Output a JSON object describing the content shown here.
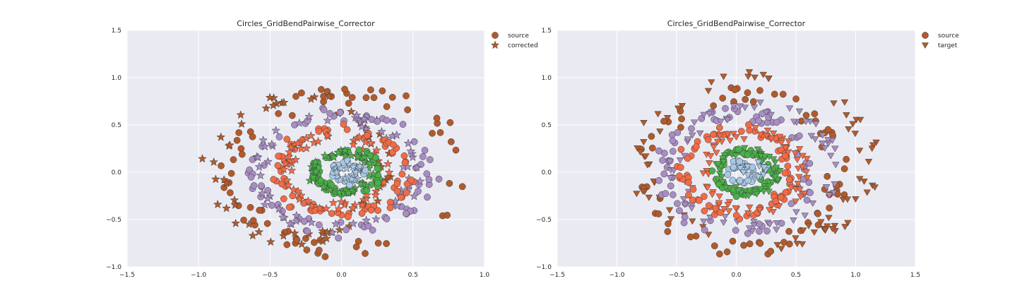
{
  "colors": {
    "axes_bg": "#eaeaf2",
    "grid": "#ffffff",
    "outer_ring": "#b35a2b",
    "ring_purple": "#a88dc4",
    "ring_orange": "#f26b45",
    "ring_green": "#4ab048",
    "ring_blue": "#a6c8e6",
    "edge": "#3a3a3a"
  },
  "chart_data": [
    {
      "type": "scatter",
      "title": "Circles_GridBendPairwise_Corrector",
      "xlabel": "",
      "ylabel": "",
      "xlim": [
        -1.5,
        1.0
      ],
      "ylim": [
        -1.0,
        1.5
      ],
      "xticks": [
        "−1.5",
        "−1.0",
        "−0.5",
        "0.0",
        "0.5",
        "1.0"
      ],
      "yticks": [
        "−1.0",
        "−0.5",
        "0.0",
        "0.5",
        "1.0",
        "1.5"
      ],
      "grid": true,
      "legend": {
        "placement": "outside-top-right",
        "entries": [
          {
            "label": "source",
            "marker": "circle"
          },
          {
            "label": "corrected",
            "marker": "star"
          }
        ]
      },
      "series": [
        {
          "name": "source",
          "marker": "circle",
          "color_by": "ring",
          "rings": [
            {
              "ring": "outer",
              "center": [
                0.05,
                0.0
              ],
              "rx": 0.8,
              "ry": 0.82,
              "n": 70
            },
            {
              "ring": "second",
              "center": [
                0.0,
                0.0
              ],
              "rx": 0.6,
              "ry": 0.62,
              "n": 70
            },
            {
              "ring": "third",
              "center": [
                0.0,
                0.0
              ],
              "rx": 0.45,
              "ry": 0.45,
              "n": 80
            },
            {
              "ring": "fourth",
              "center": [
                0.05,
                0.0
              ],
              "rx": 0.22,
              "ry": 0.22,
              "n": 60
            },
            {
              "ring": "core",
              "center": [
                0.05,
                0.0
              ],
              "rx": 0.1,
              "ry": 0.1,
              "n": 25
            }
          ]
        },
        {
          "name": "corrected",
          "marker": "star",
          "color_by": "ring",
          "rings": [
            {
              "ring": "outer",
              "center": [
                -0.3,
                0.05
              ],
              "rx": 0.6,
              "ry": 0.75,
              "n": 60
            },
            {
              "ring": "second",
              "center": [
                -0.05,
                0.0
              ],
              "rx": 0.55,
              "ry": 0.58,
              "n": 60
            },
            {
              "ring": "third",
              "center": [
                -0.05,
                0.0
              ],
              "rx": 0.35,
              "ry": 0.38,
              "n": 60
            },
            {
              "ring": "fourth",
              "center": [
                0.0,
                0.0
              ],
              "rx": 0.2,
              "ry": 0.2,
              "n": 50
            },
            {
              "ring": "core",
              "center": [
                0.05,
                0.0
              ],
              "rx": 0.07,
              "ry": 0.07,
              "n": 20
            }
          ]
        }
      ]
    },
    {
      "type": "scatter",
      "title": "Circles_GridBendPairwise_Corrector",
      "xlabel": "",
      "ylabel": "",
      "xlim": [
        -1.5,
        1.5
      ],
      "ylim": [
        -1.0,
        1.5
      ],
      "xticks": [
        "−1.5",
        "−1.0",
        "−0.5",
        "0.0",
        "0.5",
        "1.0",
        "1.5"
      ],
      "yticks": [
        "−1.0",
        "−0.5",
        "0.0",
        "0.5",
        "1.0",
        "1.5"
      ],
      "grid": true,
      "legend": {
        "placement": "outside-top-right",
        "entries": [
          {
            "label": "source",
            "marker": "circle"
          },
          {
            "label": "target",
            "marker": "triangle-down"
          }
        ]
      },
      "series": [
        {
          "name": "source",
          "marker": "circle",
          "color_by": "ring",
          "rings": [
            {
              "ring": "outer",
              "center": [
                0.05,
                0.0
              ],
              "rx": 0.8,
              "ry": 0.82,
              "n": 70
            },
            {
              "ring": "second",
              "center": [
                0.0,
                0.0
              ],
              "rx": 0.6,
              "ry": 0.62,
              "n": 70
            },
            {
              "ring": "third",
              "center": [
                0.0,
                0.0
              ],
              "rx": 0.45,
              "ry": 0.45,
              "n": 80
            },
            {
              "ring": "fourth",
              "center": [
                0.05,
                0.0
              ],
              "rx": 0.22,
              "ry": 0.22,
              "n": 60
            },
            {
              "ring": "core",
              "center": [
                0.05,
                0.0
              ],
              "rx": 0.1,
              "ry": 0.1,
              "n": 25
            }
          ]
        },
        {
          "name": "target",
          "marker": "triangle-down",
          "color_by": "ring",
          "rings": [
            {
              "ring": "outer",
              "center": [
                0.15,
                0.1
              ],
              "rx": 0.95,
              "ry": 0.85,
              "n": 75
            },
            {
              "ring": "second",
              "center": [
                0.15,
                0.05
              ],
              "rx": 0.65,
              "ry": 0.62,
              "n": 70
            },
            {
              "ring": "third",
              "center": [
                0.15,
                0.0
              ],
              "rx": 0.42,
              "ry": 0.42,
              "n": 70
            },
            {
              "ring": "fourth",
              "center": [
                0.1,
                0.0
              ],
              "rx": 0.25,
              "ry": 0.22,
              "n": 55
            },
            {
              "ring": "core",
              "center": [
                0.15,
                0.02
              ],
              "rx": 0.1,
              "ry": 0.06,
              "n": 22
            }
          ]
        }
      ]
    }
  ]
}
